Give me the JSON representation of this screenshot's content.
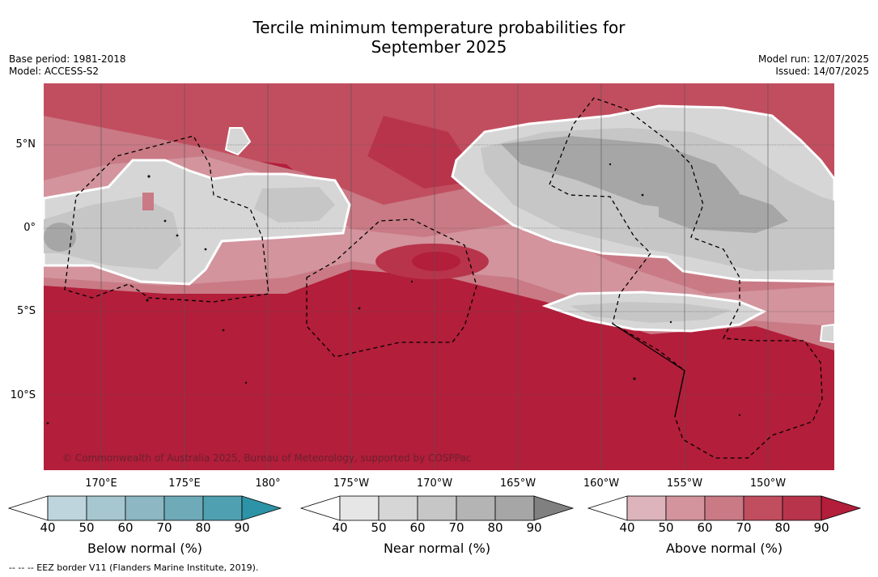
{
  "title": {
    "line1": "Tercile minimum temperature probabilities for",
    "line2": "September 2025"
  },
  "meta": {
    "base_period": "Base period: 1981-2018",
    "model": "Model: ACCESS-S2",
    "model_run": "Model run: 12/07/2025",
    "issued": "Issued: 14/07/2025"
  },
  "map": {
    "lat_labels": [
      "5°N",
      "0°",
      "5°S",
      "10°S"
    ],
    "lon_labels": [
      "170°E",
      "175°E",
      "180°",
      "175°W",
      "170°W",
      "165°W",
      "160°W",
      "155°W",
      "150°W"
    ],
    "copyright": "© Commonwealth of Australia 2025, Bureau of Meteorology, supported by COSPPac",
    "colors": {
      "base_red": "#b31e3a",
      "above_50": "#d3949d",
      "above_60": "#c97a85",
      "above_70": "#c14e5f",
      "above_80": "#b8344b",
      "near_40": "#e6e6e6",
      "near_50": "#d6d6d6",
      "near_60": "#c6c6c6",
      "near_70": "#b4b4b4",
      "near_80": "#a6a6a6"
    }
  },
  "colorbars": [
    {
      "name": "Below normal (%)",
      "ticks": [
        "40",
        "50",
        "60",
        "70",
        "80",
        "90"
      ],
      "colors": [
        "#ffffff",
        "#bfd5dd",
        "#a6c7cf",
        "#8cb7c3",
        "#6eaab8",
        "#4fa0b0",
        "#2d93a6"
      ]
    },
    {
      "name": "Near normal (%)",
      "ticks": [
        "40",
        "50",
        "60",
        "70",
        "80",
        "90"
      ],
      "colors": [
        "#ffffff",
        "#e6e6e6",
        "#d6d6d6",
        "#c6c6c6",
        "#b4b4b4",
        "#a6a6a6",
        "#808080"
      ]
    },
    {
      "name": "Above normal (%)",
      "ticks": [
        "40",
        "50",
        "60",
        "70",
        "80",
        "90"
      ],
      "colors": [
        "#ffffff",
        "#ddb4bb",
        "#d3949d",
        "#c97a85",
        "#c14e5f",
        "#b8344b",
        "#b31e3a"
      ]
    }
  ],
  "footnote": "--  --  -- EEZ border V11 (Flanders Marine Institute, 2019)."
}
